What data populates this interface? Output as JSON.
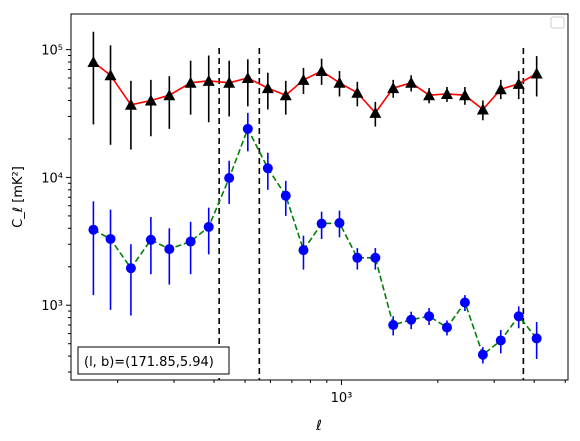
{
  "chart_data": {
    "type": "line",
    "title": "",
    "xlabel": "ℓ",
    "ylabel": "C_ℓ [mK²]",
    "xscale": "log",
    "yscale": "log",
    "xlim": [
      143,
      5100
    ],
    "ylim": [
      260,
      190000
    ],
    "x_ticks": [
      {
        "value": 1000,
        "label": "10³"
      }
    ],
    "y_ticks": [
      {
        "value": 1000,
        "label": "10³"
      },
      {
        "value": 10000,
        "label": "10⁴"
      },
      {
        "value": 100000,
        "label": "10⁵"
      }
    ],
    "grid": false,
    "legend": "top-right (empty)",
    "annotation": "(l, b)=(171.85,5.94)",
    "vlines": [
      415,
      554,
      3700
    ],
    "series": [
      {
        "color": "#ff0000",
        "marker_color": "#000000",
        "marker": "triangle",
        "linestyle": "solid",
        "points": [
          {
            "x": 168,
            "y": 80000,
            "lo": 26000,
            "hi": 138000
          },
          {
            "x": 190,
            "y": 63000,
            "lo": 18000,
            "hi": 108000
          },
          {
            "x": 220,
            "y": 37000,
            "lo": 16500,
            "hi": 57000
          },
          {
            "x": 254,
            "y": 40000,
            "lo": 21000,
            "hi": 58000
          },
          {
            "x": 290,
            "y": 44000,
            "lo": 24000,
            "hi": 62000
          },
          {
            "x": 338,
            "y": 55000,
            "lo": 31000,
            "hi": 82000
          },
          {
            "x": 385,
            "y": 57000,
            "lo": 27000,
            "hi": 90000
          },
          {
            "x": 446,
            "y": 55000,
            "lo": 30000,
            "hi": 82000
          },
          {
            "x": 510,
            "y": 60000,
            "lo": 36000,
            "hi": 84000
          },
          {
            "x": 589,
            "y": 50000,
            "lo": 34000,
            "hi": 66000
          },
          {
            "x": 670,
            "y": 44000,
            "lo": 31000,
            "hi": 57000
          },
          {
            "x": 761,
            "y": 58000,
            "lo": 45000,
            "hi": 72000
          },
          {
            "x": 867,
            "y": 68000,
            "lo": 53000,
            "hi": 85000
          },
          {
            "x": 986,
            "y": 55000,
            "lo": 43000,
            "hi": 68000
          },
          {
            "x": 1121,
            "y": 46000,
            "lo": 36000,
            "hi": 56000
          },
          {
            "x": 1276,
            "y": 32000,
            "lo": 25000,
            "hi": 39000
          },
          {
            "x": 1451,
            "y": 50000,
            "lo": 42000,
            "hi": 58000
          },
          {
            "x": 1651,
            "y": 55000,
            "lo": 47000,
            "hi": 63000
          },
          {
            "x": 1878,
            "y": 44000,
            "lo": 38000,
            "hi": 50000
          },
          {
            "x": 2136,
            "y": 45000,
            "lo": 39000,
            "hi": 51000
          },
          {
            "x": 2430,
            "y": 44000,
            "lo": 37000,
            "hi": 51000
          },
          {
            "x": 2765,
            "y": 34000,
            "lo": 28000,
            "hi": 40000
          },
          {
            "x": 3145,
            "y": 49000,
            "lo": 41000,
            "hi": 58000
          },
          {
            "x": 3578,
            "y": 54000,
            "lo": 41000,
            "hi": 68000
          },
          {
            "x": 4071,
            "y": 65000,
            "lo": 43000,
            "hi": 89000
          }
        ]
      },
      {
        "color": "#008000",
        "marker_color": "#0000ff",
        "marker": "circle",
        "linestyle": "dashed",
        "points": [
          {
            "x": 168,
            "y": 3900,
            "lo": 1200,
            "hi": 6500
          },
          {
            "x": 190,
            "y": 3300,
            "lo": 920,
            "hi": 5600
          },
          {
            "x": 220,
            "y": 1950,
            "lo": 830,
            "hi": 3000
          },
          {
            "x": 254,
            "y": 3250,
            "lo": 1750,
            "hi": 4900
          },
          {
            "x": 290,
            "y": 2750,
            "lo": 1450,
            "hi": 4000
          },
          {
            "x": 338,
            "y": 3150,
            "lo": 1750,
            "hi": 4500
          },
          {
            "x": 385,
            "y": 4100,
            "lo": 2500,
            "hi": 5800
          },
          {
            "x": 446,
            "y": 9900,
            "lo": 6200,
            "hi": 13500
          },
          {
            "x": 510,
            "y": 24000,
            "lo": 16000,
            "hi": 32000
          },
          {
            "x": 589,
            "y": 11800,
            "lo": 8000,
            "hi": 15600
          },
          {
            "x": 670,
            "y": 7200,
            "lo": 5000,
            "hi": 9400
          },
          {
            "x": 761,
            "y": 2700,
            "lo": 1900,
            "hi": 3500
          },
          {
            "x": 867,
            "y": 4350,
            "lo": 3300,
            "hi": 5400
          },
          {
            "x": 986,
            "y": 4400,
            "lo": 3400,
            "hi": 5500
          },
          {
            "x": 1121,
            "y": 2350,
            "lo": 1900,
            "hi": 2800
          },
          {
            "x": 1276,
            "y": 2350,
            "lo": 1900,
            "hi": 2800
          },
          {
            "x": 1451,
            "y": 700,
            "lo": 580,
            "hi": 820
          },
          {
            "x": 1651,
            "y": 770,
            "lo": 650,
            "hi": 890
          },
          {
            "x": 1878,
            "y": 820,
            "lo": 700,
            "hi": 950
          },
          {
            "x": 2136,
            "y": 670,
            "lo": 580,
            "hi": 760
          },
          {
            "x": 2430,
            "y": 1050,
            "lo": 900,
            "hi": 1200
          },
          {
            "x": 2765,
            "y": 410,
            "lo": 350,
            "hi": 470
          },
          {
            "x": 3145,
            "y": 530,
            "lo": 420,
            "hi": 640
          },
          {
            "x": 3578,
            "y": 820,
            "lo": 660,
            "hi": 980
          },
          {
            "x": 4071,
            "y": 550,
            "lo": 380,
            "hi": 740
          }
        ]
      }
    ]
  }
}
